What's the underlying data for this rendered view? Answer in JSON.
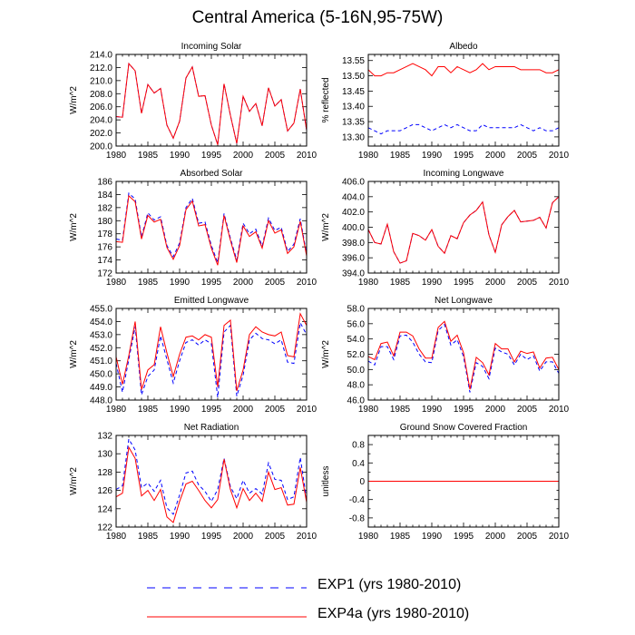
{
  "title": "Central America (5-16N,95-75W)",
  "colors": {
    "exp1": "#0000ff",
    "exp4a": "#ff0000",
    "zero": "#800080"
  },
  "legend": [
    {
      "label": "EXP1 (yrs 1980-2010)",
      "color": "#0000ff",
      "style": "dashed"
    },
    {
      "label": "EXP4a (yrs 1980-2010)",
      "color": "#ff0000",
      "style": "solid"
    }
  ],
  "chart_data": [
    {
      "type": "line",
      "title": "Incoming Solar",
      "ylabel": "W/m^2",
      "xlim": [
        1980,
        2010
      ],
      "ylim": [
        200,
        214
      ],
      "xticks": [
        "1980",
        "1985",
        "1990",
        "1995",
        "2000",
        "2005",
        "2010"
      ],
      "yticks": [
        "200.0",
        "202.0",
        "204.0",
        "206.0",
        "208.0",
        "210.0",
        "212.0",
        "214.0"
      ],
      "x": [
        1980,
        1981,
        1982,
        1983,
        1984,
        1985,
        1986,
        1987,
        1988,
        1989,
        1990,
        1991,
        1992,
        1993,
        1994,
        1995,
        1996,
        1997,
        1998,
        1999,
        2000,
        2001,
        2002,
        2003,
        2004,
        2005,
        2006,
        2007,
        2008,
        2009,
        2010
      ],
      "series": [
        {
          "name": "EXP1",
          "values": [
            204.5,
            204.4,
            212.6,
            211.5,
            205.0,
            209.4,
            208.1,
            208.8,
            203.2,
            201.2,
            203.8,
            210.4,
            212.1,
            207.6,
            207.7,
            203.2,
            200.2,
            209.5,
            204.7,
            200.4,
            207.6,
            205.3,
            206.5,
            203.1,
            208.9,
            206.1,
            207.1,
            202.3,
            203.5,
            208.7,
            202.4
          ]
        },
        {
          "name": "EXP4a",
          "values": [
            204.5,
            204.4,
            212.6,
            211.5,
            205.0,
            209.4,
            208.1,
            208.8,
            203.2,
            201.2,
            203.8,
            210.4,
            212.1,
            207.6,
            207.7,
            203.2,
            200.2,
            209.5,
            204.7,
            200.4,
            207.6,
            205.3,
            206.5,
            203.1,
            208.9,
            206.1,
            207.1,
            202.3,
            203.5,
            208.7,
            202.4
          ]
        }
      ]
    },
    {
      "type": "line",
      "title": "Albedo",
      "ylabel": "% reflected",
      "xlim": [
        1980,
        2010
      ],
      "ylim": [
        13.27,
        13.57
      ],
      "xticks": [
        "1980",
        "1985",
        "1990",
        "1995",
        "2000",
        "2005",
        "2010"
      ],
      "yticks": [
        "13.30",
        "13.35",
        "13.40",
        "13.45",
        "13.50",
        "13.55"
      ],
      "x": [
        1980,
        1981,
        1982,
        1983,
        1984,
        1985,
        1986,
        1987,
        1988,
        1989,
        1990,
        1991,
        1992,
        1993,
        1994,
        1995,
        1996,
        1997,
        1998,
        1999,
        2000,
        2001,
        2002,
        2003,
        2004,
        2005,
        2006,
        2007,
        2008,
        2009,
        2010
      ],
      "series": [
        {
          "name": "EXP1",
          "values": [
            13.33,
            13.32,
            13.31,
            13.32,
            13.32,
            13.32,
            13.33,
            13.34,
            13.34,
            13.33,
            13.32,
            13.33,
            13.34,
            13.33,
            13.34,
            13.33,
            13.32,
            13.32,
            13.34,
            13.33,
            13.33,
            13.33,
            13.33,
            13.33,
            13.34,
            13.33,
            13.32,
            13.33,
            13.32,
            13.32,
            13.33
          ]
        },
        {
          "name": "EXP4a",
          "values": [
            13.52,
            13.5,
            13.5,
            13.51,
            13.51,
            13.52,
            13.53,
            13.54,
            13.53,
            13.52,
            13.5,
            13.53,
            13.53,
            13.51,
            13.53,
            13.52,
            13.51,
            13.52,
            13.54,
            13.52,
            13.53,
            13.53,
            13.53,
            13.53,
            13.52,
            13.52,
            13.52,
            13.52,
            13.51,
            13.51,
            13.52
          ]
        }
      ]
    },
    {
      "type": "line",
      "title": "Absorbed Solar",
      "ylabel": "W/m^2",
      "xlim": [
        1980,
        2010
      ],
      "ylim": [
        172,
        186
      ],
      "xticks": [
        "1980",
        "1985",
        "1990",
        "1995",
        "2000",
        "2005",
        "2010"
      ],
      "yticks": [
        "172",
        "174",
        "176",
        "178",
        "180",
        "182",
        "184",
        "186"
      ],
      "x": [
        1980,
        1981,
        1982,
        1983,
        1984,
        1985,
        1986,
        1987,
        1988,
        1989,
        1990,
        1991,
        1992,
        1993,
        1994,
        1995,
        1996,
        1997,
        1998,
        1999,
        2000,
        2001,
        2002,
        2003,
        2004,
        2005,
        2006,
        2007,
        2008,
        2009,
        2010
      ],
      "series": [
        {
          "name": "EXP1",
          "values": [
            177.2,
            177.0,
            184.2,
            183.3,
            177.5,
            181.2,
            180.1,
            180.6,
            176.2,
            174.5,
            176.6,
            182.0,
            183.4,
            179.6,
            179.8,
            176.2,
            173.6,
            181.1,
            177.3,
            174.0,
            179.6,
            178.0,
            178.7,
            176.1,
            180.4,
            178.5,
            179.0,
            175.3,
            176.4,
            180.3,
            174.9
          ]
        },
        {
          "name": "EXP4a",
          "values": [
            176.8,
            176.7,
            183.8,
            182.9,
            177.2,
            180.8,
            179.8,
            180.2,
            175.9,
            174.1,
            176.2,
            181.7,
            183.0,
            179.2,
            179.4,
            175.8,
            173.2,
            180.8,
            177.0,
            173.6,
            179.2,
            177.6,
            178.3,
            175.8,
            180.0,
            178.1,
            178.6,
            175.0,
            176.0,
            179.9,
            174.6
          ]
        }
      ]
    },
    {
      "type": "line",
      "title": "Incoming Longwave",
      "ylabel": "W/m^2",
      "xlim": [
        1980,
        2010
      ],
      "ylim": [
        394,
        406
      ],
      "xticks": [
        "1980",
        "1985",
        "1990",
        "1995",
        "2000",
        "2005",
        "2010"
      ],
      "yticks": [
        "394.0",
        "396.0",
        "398.0",
        "400.0",
        "402.0",
        "404.0",
        "406.0"
      ],
      "x": [
        1980,
        1981,
        1982,
        1983,
        1984,
        1985,
        1986,
        1987,
        1988,
        1989,
        1990,
        1991,
        1992,
        1993,
        1994,
        1995,
        1996,
        1997,
        1998,
        1999,
        2000,
        2001,
        2002,
        2003,
        2004,
        2005,
        2006,
        2007,
        2008,
        2009,
        2010
      ],
      "series": [
        {
          "name": "EXP1",
          "values": [
            399.7,
            398.0,
            397.8,
            400.4,
            396.8,
            395.3,
            395.6,
            399.2,
            398.9,
            398.3,
            399.7,
            397.5,
            396.6,
            398.9,
            398.5,
            400.6,
            401.6,
            402.2,
            403.3,
            399.0,
            396.7,
            400.3,
            401.4,
            402.2,
            400.7,
            400.8,
            400.9,
            401.3,
            399.9,
            403.2,
            404.0
          ]
        },
        {
          "name": "EXP4a",
          "values": [
            399.7,
            398.0,
            397.8,
            400.4,
            396.8,
            395.3,
            395.6,
            399.2,
            398.9,
            398.3,
            399.7,
            397.5,
            396.6,
            398.9,
            398.5,
            400.6,
            401.6,
            402.2,
            403.3,
            399.0,
            396.7,
            400.3,
            401.4,
            402.2,
            400.7,
            400.8,
            400.9,
            401.3,
            399.9,
            403.2,
            404.0
          ]
        }
      ]
    },
    {
      "type": "line",
      "title": "Emitted Longwave",
      "ylabel": "W/m^2",
      "xlim": [
        1980,
        2010
      ],
      "ylim": [
        448,
        455
      ],
      "xticks": [
        "1980",
        "1985",
        "1990",
        "1995",
        "2000",
        "2005",
        "2010"
      ],
      "yticks": [
        "448.0",
        "449.0",
        "450.0",
        "451.0",
        "452.0",
        "453.0",
        "454.0",
        "455.0"
      ],
      "x": [
        1980,
        1981,
        1982,
        1983,
        1984,
        1985,
        1986,
        1987,
        1988,
        1989,
        1990,
        1991,
        1992,
        1993,
        1994,
        1995,
        1996,
        1997,
        1998,
        1999,
        2000,
        2001,
        2002,
        2003,
        2004,
        2005,
        2006,
        2007,
        2008,
        2009,
        2010
      ],
      "series": [
        {
          "name": "EXP1",
          "values": [
            450.8,
            448.6,
            451.1,
            453.6,
            448.4,
            449.8,
            450.3,
            452.9,
            451.1,
            449.3,
            451.0,
            452.4,
            452.6,
            452.2,
            452.6,
            452.3,
            448.2,
            453.2,
            453.7,
            448.3,
            449.9,
            452.6,
            453.1,
            452.7,
            452.6,
            452.3,
            452.6,
            450.9,
            450.8,
            453.9,
            453.0
          ]
        },
        {
          "name": "EXP4a",
          "values": [
            451.3,
            449.2,
            451.4,
            454.0,
            448.8,
            450.3,
            450.7,
            453.6,
            451.6,
            449.8,
            451.5,
            452.8,
            452.9,
            452.6,
            453.0,
            452.8,
            449.0,
            453.7,
            454.1,
            448.7,
            450.3,
            453.0,
            453.6,
            453.2,
            453.0,
            452.9,
            453.2,
            451.4,
            451.3,
            454.6,
            453.7
          ]
        }
      ]
    },
    {
      "type": "line",
      "title": "Net Longwave",
      "ylabel": "W/m^2",
      "xlim": [
        1980,
        2010
      ],
      "ylim": [
        46,
        58
      ],
      "xticks": [
        "1980",
        "1985",
        "1990",
        "1995",
        "2000",
        "2005",
        "2010"
      ],
      "yticks": [
        "46.0",
        "48.0",
        "50.0",
        "52.0",
        "54.0",
        "56.0",
        "58.0"
      ],
      "x": [
        1980,
        1981,
        1982,
        1983,
        1984,
        1985,
        1986,
        1987,
        1988,
        1989,
        1990,
        1991,
        1992,
        1993,
        1994,
        1995,
        1996,
        1997,
        1998,
        1999,
        2000,
        2001,
        2002,
        2003,
        2004,
        2005,
        2006,
        2007,
        2008,
        2009,
        2010
      ],
      "series": [
        {
          "name": "EXP1",
          "values": [
            51.1,
            50.6,
            53.0,
            53.0,
            51.3,
            54.4,
            54.5,
            53.6,
            52.0,
            51.0,
            50.9,
            55.1,
            55.9,
            53.2,
            53.9,
            51.7,
            47.0,
            50.9,
            50.4,
            48.8,
            52.8,
            52.3,
            52.0,
            50.6,
            52.0,
            51.3,
            51.8,
            49.8,
            51.0,
            51.0,
            49.5
          ]
        },
        {
          "name": "EXP4a",
          "values": [
            51.7,
            51.3,
            53.4,
            53.6,
            51.8,
            54.9,
            54.9,
            54.4,
            52.7,
            51.5,
            51.5,
            55.5,
            56.3,
            53.7,
            54.5,
            52.2,
            47.4,
            51.6,
            50.9,
            49.3,
            53.4,
            52.7,
            52.7,
            51.0,
            52.4,
            52.1,
            52.3,
            50.2,
            51.5,
            51.6,
            50.0
          ]
        }
      ]
    },
    {
      "type": "line",
      "title": "Net Radiation",
      "ylabel": "W/m^2",
      "xlim": [
        1980,
        2010
      ],
      "ylim": [
        122,
        132
      ],
      "xticks": [
        "1980",
        "1985",
        "1990",
        "1995",
        "2000",
        "2005",
        "2010"
      ],
      "yticks": [
        "122",
        "124",
        "126",
        "128",
        "130",
        "132"
      ],
      "x": [
        1980,
        1981,
        1982,
        1983,
        1984,
        1985,
        1986,
        1987,
        1988,
        1989,
        1990,
        1991,
        1992,
        1993,
        1994,
        1995,
        1996,
        1997,
        1998,
        1999,
        2000,
        2001,
        2002,
        2003,
        2004,
        2005,
        2006,
        2007,
        2008,
        2009,
        2010
      ],
      "series": [
        {
          "name": "EXP1",
          "values": [
            126.1,
            126.5,
            131.6,
            130.4,
            126.3,
            126.8,
            125.9,
            127.1,
            124.1,
            123.4,
            125.5,
            127.9,
            128.1,
            126.6,
            125.9,
            124.8,
            126.1,
            129.5,
            126.4,
            125.1,
            127.1,
            125.7,
            126.2,
            125.6,
            129.0,
            127.2,
            127.1,
            125.0,
            125.3,
            129.6,
            125.0
          ]
        },
        {
          "name": "EXP4a",
          "values": [
            125.3,
            125.7,
            130.7,
            129.5,
            125.4,
            126.0,
            124.9,
            126.1,
            123.1,
            122.5,
            124.8,
            126.7,
            127.0,
            126.0,
            124.9,
            124.1,
            125.0,
            129.4,
            126.1,
            124.1,
            126.2,
            124.9,
            125.7,
            124.8,
            128.0,
            126.1,
            126.3,
            124.4,
            124.5,
            128.5,
            124.7
          ]
        }
      ]
    },
    {
      "type": "line",
      "title": "Ground Snow Covered Fraction",
      "ylabel": "unitless",
      "xlim": [
        1980,
        2010
      ],
      "ylim": [
        -1,
        1
      ],
      "xticks": [
        "1980",
        "1985",
        "1990",
        "1995",
        "2000",
        "2005",
        "2010"
      ],
      "yticks": [
        "-0.8",
        "-0.4",
        "0",
        "0.4",
        "0.8"
      ],
      "ytick_values": [
        -0.8,
        -0.6,
        -0.4,
        -0.2,
        0,
        0.2,
        0.4,
        0.6,
        0.8
      ],
      "x": [
        1980,
        2010
      ],
      "series": [
        {
          "name": "EXP1",
          "values": [
            0,
            0
          ]
        },
        {
          "name": "EXP4a",
          "values": [
            0,
            0
          ]
        }
      ]
    }
  ]
}
